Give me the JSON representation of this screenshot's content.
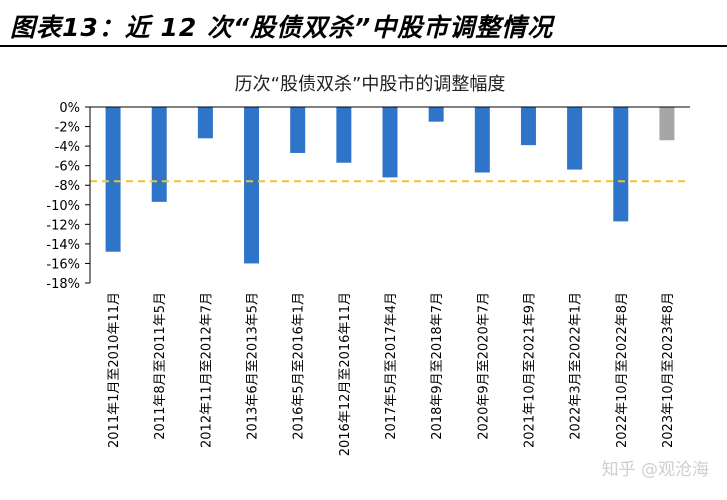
{
  "header": {
    "title": "图表13：近 12 次“股债双杀”中股市调整情况"
  },
  "watermark": "知乎 @观沧海",
  "chart_data": {
    "type": "bar",
    "title": "历次“股债双杀”中股市的调整幅度",
    "xlabel": "",
    "ylabel": "",
    "ylim": [
      -18,
      0
    ],
    "yticks": [
      0,
      -2,
      -4,
      -6,
      -8,
      -10,
      -12,
      -14,
      -16,
      -18
    ],
    "ytick_labels": [
      "0%",
      "-2%",
      "-4%",
      "-6%",
      "-8%",
      "-10%",
      "-12%",
      "-14%",
      "-16%",
      "-18%"
    ],
    "categories": [
      "2011年1月至2010年11月",
      "2011年8月至2011年5月",
      "2012年11月至2012年7月",
      "2013年6月至2013年5月",
      "2016年5月至2016年1月",
      "2016年12月至2016年11月",
      "2017年5月至2017年4月",
      "2018年9月至2018年7月",
      "2020年9月至2020年7月",
      "2021年10月至2021年9月",
      "2022年3月至2022年1月",
      "2022年10月至2022年8月",
      "2023年10月至2023年8月"
    ],
    "values": [
      -14.8,
      -9.7,
      -3.2,
      -16.0,
      -4.7,
      -5.7,
      -7.2,
      -1.5,
      -6.7,
      -3.9,
      -6.4,
      -11.7,
      -3.4
    ],
    "bar_colors": [
      "#2E75C9",
      "#2E75C9",
      "#2E75C9",
      "#2E75C9",
      "#2E75C9",
      "#2E75C9",
      "#2E75C9",
      "#2E75C9",
      "#2E75C9",
      "#2E75C9",
      "#2E75C9",
      "#2E75C9",
      "#A6A6A6"
    ],
    "reference_line": {
      "value": -7.6,
      "color": "#F2C12E",
      "style": "dashed"
    },
    "grid": false,
    "legend": "none"
  }
}
